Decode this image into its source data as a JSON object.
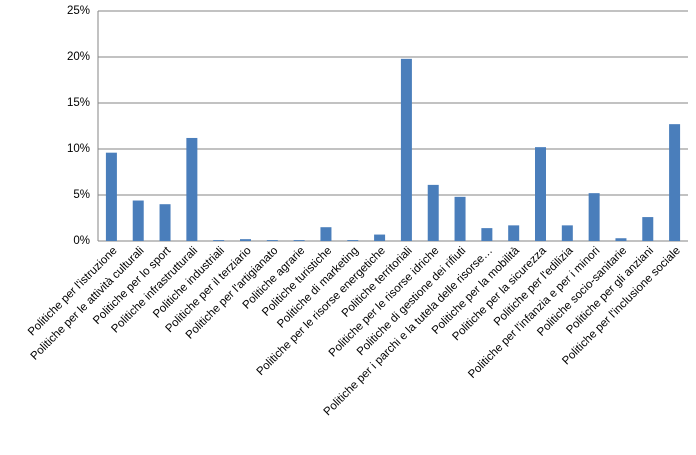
{
  "chart_data": {
    "type": "bar",
    "categories": [
      "Politiche per l'istruzione",
      "Politiche per le attività culturali",
      "Politiche per lo sport",
      "Politiche infrastrutturali",
      "Politiche industriali",
      "Politiche per il terziario",
      "Politiche per l'artigianato",
      "Politiche agrarie",
      "Politiche turistiche",
      "Politiche di marketing",
      "Politiche per le risorse energetiche",
      "Politiche territoriali",
      "Politiche per le risorse idriche",
      "Politiche di gestione dei rifiuti",
      "Politiche per i parchi e la tutela delle risorse…",
      "Politiche per la mobilità",
      "Politiche per la sicurezza",
      "Politiche per l'edilizia",
      "Politiche per l'infanzia e per i minori",
      "Politiche socio-sanitarie",
      "Politiche per gli anziani",
      "Politiche per l'inclusione sociale"
    ],
    "values": [
      9.6,
      4.4,
      4.0,
      11.2,
      0.1,
      0.2,
      0.1,
      0.1,
      1.5,
      0.1,
      0.7,
      19.8,
      6.1,
      4.8,
      1.4,
      1.7,
      10.2,
      1.7,
      5.2,
      0.3,
      2.6,
      12.7
    ],
    "color": "#4a7ebb",
    "ylim": [
      0,
      25
    ],
    "yticks": [
      {
        "value": 0,
        "label": "0%"
      },
      {
        "value": 5,
        "label": "5%"
      },
      {
        "value": 10,
        "label": "10%"
      },
      {
        "value": 15,
        "label": "15%"
      },
      {
        "value": 20,
        "label": "20%"
      },
      {
        "value": 25,
        "label": "25%"
      }
    ],
    "grid": true
  }
}
